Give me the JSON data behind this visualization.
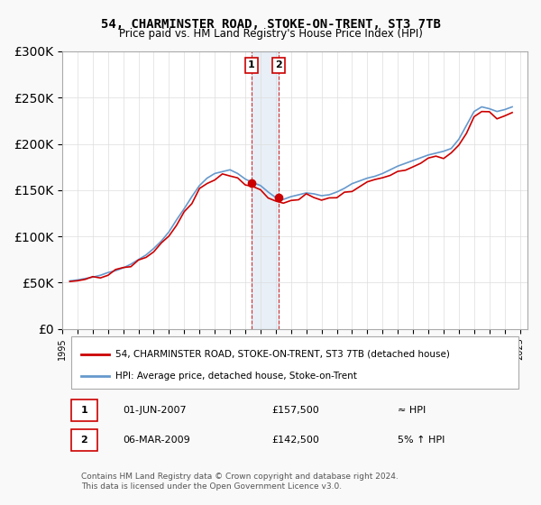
{
  "title": "54, CHARMINSTER ROAD, STOKE-ON-TRENT, ST3 7TB",
  "subtitle": "Price paid vs. HM Land Registry's House Price Index (HPI)",
  "hpi_color": "#6699cc",
  "price_color": "#cc0000",
  "sale1_date": "2007-06-01",
  "sale1_price": 157500,
  "sale1_label": "1",
  "sale1_year": 2007.417,
  "sale2_date": "2009-03-06",
  "sale2_price": 142500,
  "sale2_label": "2",
  "sale2_year": 2009.18,
  "legend_house": "54, CHARMINSTER ROAD, STOKE-ON-TRENT, ST3 7TB (detached house)",
  "legend_hpi": "HPI: Average price, detached house, Stoke-on-Trent",
  "table_row1": [
    "1",
    "01-JUN-2007",
    "£157,500",
    "≈ HPI"
  ],
  "table_row2": [
    "2",
    "06-MAR-2009",
    "£142,500",
    "5% ↑ HPI"
  ],
  "copyright": "Contains HM Land Registry data © Crown copyright and database right 2024.\nThis data is licensed under the Open Government Licence v3.0.",
  "ylim": [
    0,
    300000
  ],
  "xlim": [
    1995,
    2025.5
  ],
  "background_color": "#f9f9f9",
  "plot_bg_color": "#ffffff",
  "grid_color": "#dddddd"
}
